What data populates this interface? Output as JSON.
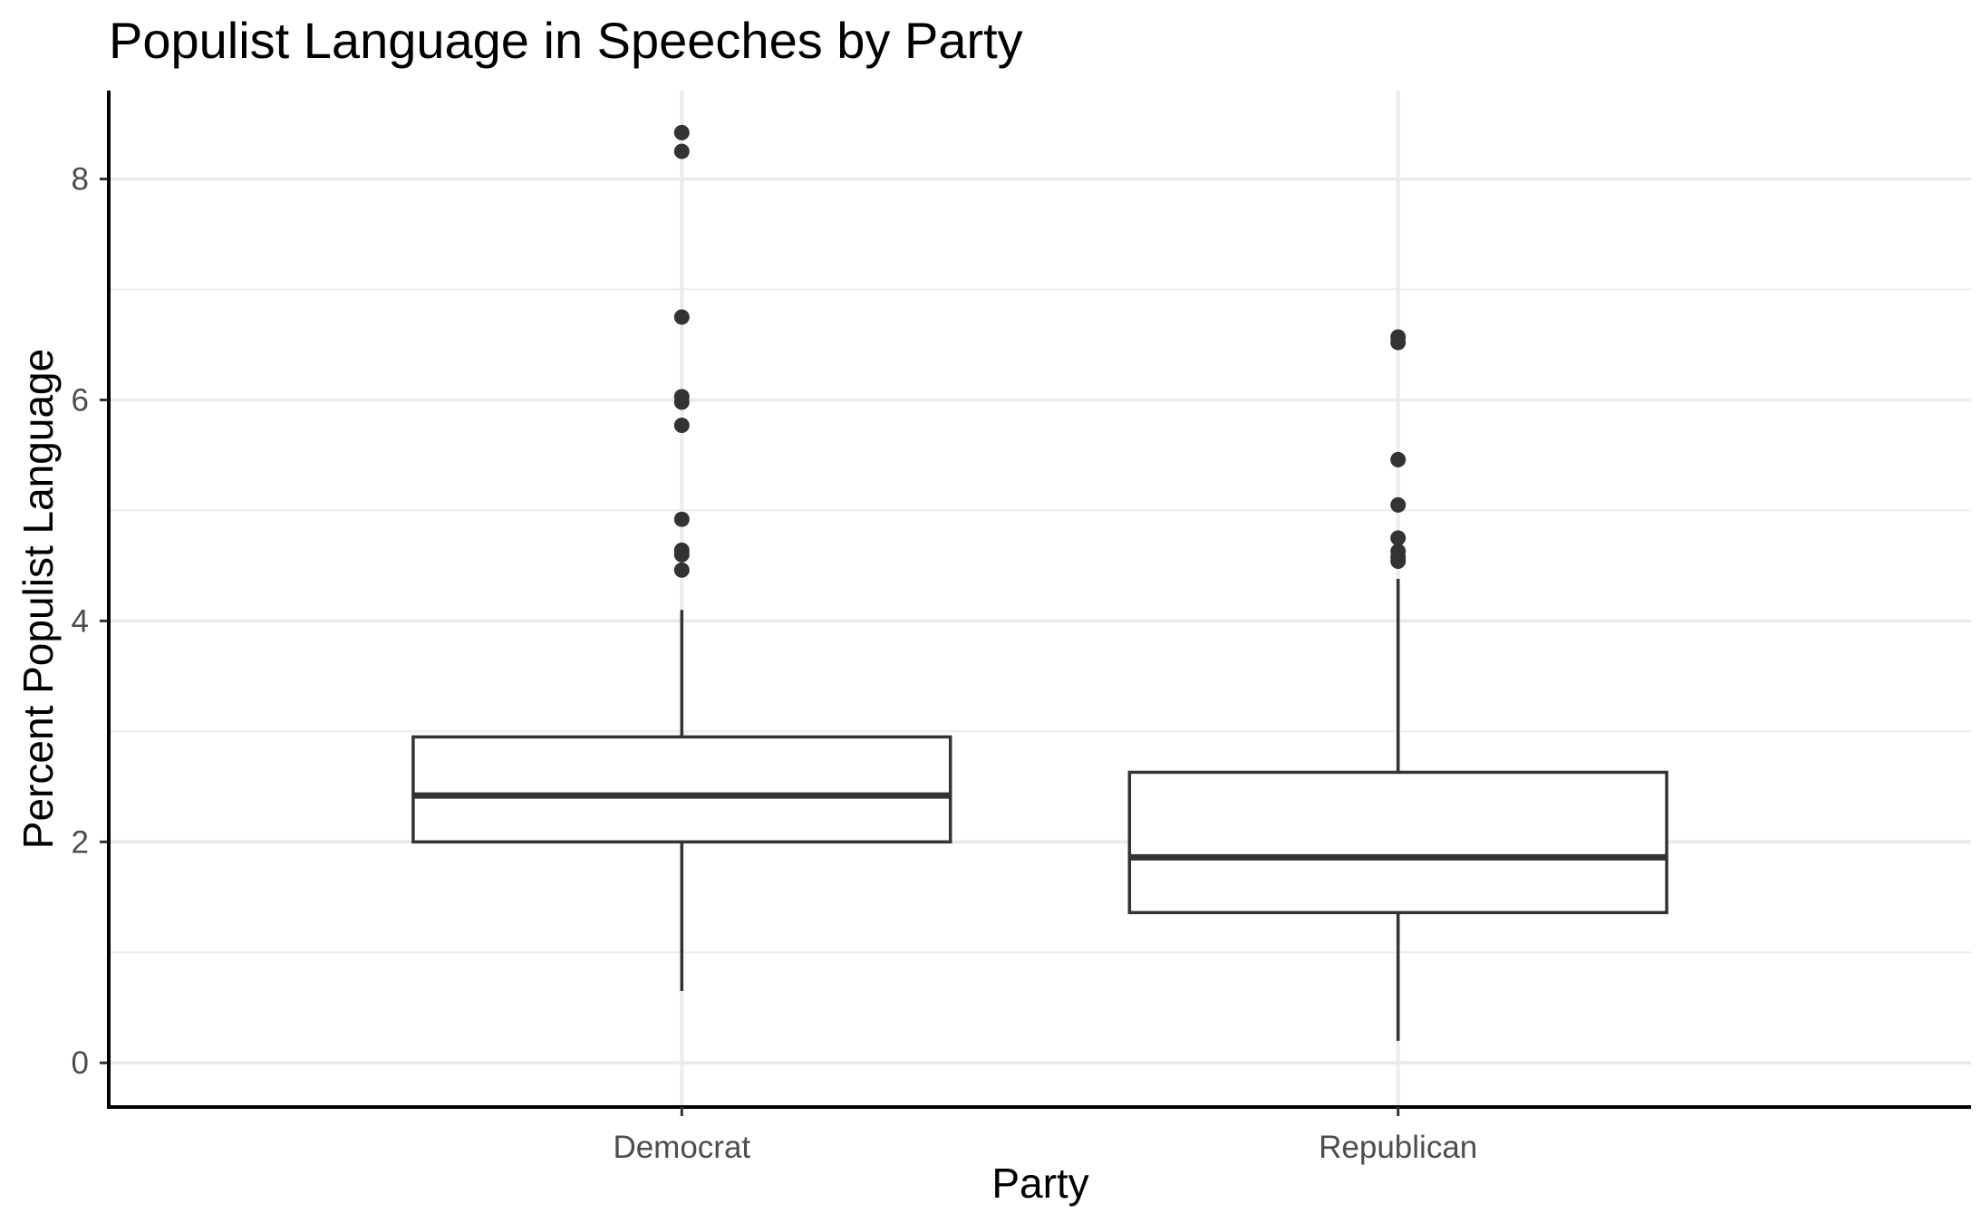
{
  "chart_data": {
    "type": "boxplot",
    "title": "Populist Language in Speeches by Party",
    "xlabel": "Party",
    "ylabel": "Percent Populist Language",
    "categories": [
      "Democrat",
      "Republican"
    ],
    "ylim": [
      -0.4,
      8.8
    ],
    "yticks": [
      0,
      2,
      4,
      6,
      8
    ],
    "yticks_labels": [
      "0",
      "2",
      "4",
      "6",
      "8"
    ],
    "grid": true,
    "boxes": [
      {
        "category": "Democrat",
        "whisker_low": 0.65,
        "q1": 2.0,
        "median": 2.42,
        "q3": 2.95,
        "whisker_high": 4.1,
        "outliers": [
          8.42,
          8.25,
          6.75,
          6.03,
          5.98,
          5.77,
          4.92,
          4.64,
          4.6,
          4.46
        ]
      },
      {
        "category": "Republican",
        "whisker_low": 0.2,
        "q1": 1.36,
        "median": 1.86,
        "q3": 2.63,
        "whisker_high": 4.38,
        "outliers": [
          6.57,
          6.52,
          5.46,
          5.05,
          4.75,
          4.63,
          4.58,
          4.54
        ]
      }
    ],
    "colors": {
      "box_stroke": "#333333",
      "box_fill": "#ffffff",
      "outlier": "#333333",
      "grid": "#ebebeb",
      "axis": "#000000"
    }
  }
}
